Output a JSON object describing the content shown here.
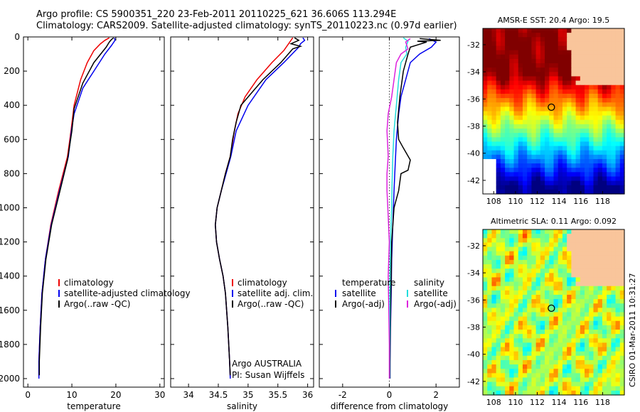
{
  "header": {
    "line1": "Argo profile: CS 5900351_220 23-Feb-2011 20110225_621 36.606S 113.294E",
    "line2": "Climatology: CARS2009. Satellite-adjusted climatology: synTS_20110223.nc (0.97d earlier)"
  },
  "colors": {
    "climatology": "#ee0000",
    "satellite": "#0000ee",
    "argo": "#000000",
    "satellite_salinity": "#22dddd",
    "argo_salinity": "#dd22dd"
  },
  "chart_data": [
    {
      "type": "line",
      "xlabel": "temperature",
      "xlim": [
        -1,
        31
      ],
      "ylim": [
        2050,
        0
      ],
      "xticks": [
        0,
        10,
        20,
        30
      ],
      "yticks": [
        0,
        200,
        400,
        600,
        800,
        1000,
        1200,
        1400,
        1600,
        1800,
        2000
      ],
      "legend": [
        "climatology",
        "satellite-adjusted climatology",
        "Argo(..raw -QC)"
      ],
      "series": [
        {
          "name": "climatology",
          "color": "#ee0000",
          "points": [
            [
              18.5,
              5
            ],
            [
              17.5,
              20
            ],
            [
              16.5,
              40
            ],
            [
              15,
              80
            ],
            [
              13.5,
              150
            ],
            [
              12,
              250
            ],
            [
              10.5,
              400
            ],
            [
              9.8,
              550
            ],
            [
              9,
              700
            ],
            [
              7,
              900
            ],
            [
              5.2,
              1100
            ],
            [
              4,
              1300
            ],
            [
              3.2,
              1500
            ],
            [
              2.8,
              1700
            ],
            [
              2.5,
              1900
            ],
            [
              2.5,
              1990
            ]
          ]
        },
        {
          "name": "satellite-adjusted climatology",
          "color": "#0000ee",
          "points": [
            [
              19.7,
              5
            ],
            [
              19.8,
              20
            ],
            [
              19,
              50
            ],
            [
              17.5,
              100
            ],
            [
              15,
              200
            ],
            [
              12.5,
              300
            ],
            [
              10.5,
              450
            ],
            [
              9.9,
              550
            ],
            [
              9.2,
              700
            ],
            [
              7.2,
              900
            ],
            [
              5.3,
              1100
            ],
            [
              4,
              1300
            ],
            [
              3.2,
              1500
            ],
            [
              2.8,
              1700
            ],
            [
              2.5,
              1900
            ],
            [
              2.5,
              2000
            ]
          ]
        },
        {
          "name": "Argo(..raw -QC)",
          "color": "#000000",
          "points": [
            [
              19.5,
              5
            ],
            [
              19,
              15
            ],
            [
              18.5,
              30
            ],
            [
              17.8,
              60
            ],
            [
              15,
              150
            ],
            [
              12.5,
              270
            ],
            [
              10.5,
              420
            ],
            [
              10,
              550
            ],
            [
              9,
              720
            ],
            [
              7.3,
              900
            ],
            [
              5.4,
              1100
            ],
            [
              4.1,
              1300
            ],
            [
              3.3,
              1500
            ],
            [
              2.9,
              1700
            ],
            [
              2.6,
              1900
            ],
            [
              2.6,
              1980
            ]
          ]
        }
      ]
    },
    {
      "type": "line",
      "xlabel": "salinity",
      "xlim": [
        33.7,
        36.1
      ],
      "ylim": [
        2050,
        0
      ],
      "xticks": [
        34,
        34.5,
        35,
        35.5,
        36
      ],
      "legend": [
        "climatology",
        "satellite adj. clim.",
        "Argo(..raw -QC)"
      ],
      "annotation": [
        "Argo AUSTRALIA",
        "PI: Susan Wijffels"
      ],
      "series": [
        {
          "name": "climatology",
          "color": "#ee0000",
          "points": [
            [
              35.75,
              5
            ],
            [
              35.7,
              30
            ],
            [
              35.6,
              80
            ],
            [
              35.4,
              150
            ],
            [
              35.15,
              250
            ],
            [
              34.95,
              350
            ],
            [
              34.83,
              450
            ],
            [
              34.77,
              550
            ],
            [
              34.7,
              700
            ],
            [
              34.62,
              800
            ],
            [
              34.55,
              900
            ],
            [
              34.48,
              1000
            ],
            [
              34.45,
              1100
            ],
            [
              34.47,
              1200
            ],
            [
              34.52,
              1300
            ],
            [
              34.58,
              1400
            ],
            [
              34.62,
              1500
            ],
            [
              34.66,
              1700
            ],
            [
              34.69,
              1900
            ],
            [
              34.7,
              1990
            ]
          ]
        },
        {
          "name": "satellite adj. clim.",
          "color": "#0000ee",
          "points": [
            [
              35.92,
              5
            ],
            [
              35.95,
              20
            ],
            [
              35.88,
              40
            ],
            [
              35.85,
              60
            ],
            [
              35.6,
              150
            ],
            [
              35.3,
              250
            ],
            [
              35.0,
              400
            ],
            [
              34.8,
              550
            ],
            [
              34.71,
              700
            ],
            [
              34.63,
              800
            ],
            [
              34.55,
              900
            ],
            [
              34.48,
              1000
            ],
            [
              34.45,
              1100
            ],
            [
              34.47,
              1200
            ],
            [
              34.52,
              1300
            ],
            [
              34.58,
              1400
            ],
            [
              34.62,
              1500
            ],
            [
              34.66,
              1700
            ],
            [
              34.69,
              1900
            ],
            [
              34.7,
              2000
            ]
          ]
        },
        {
          "name": "Argo(..raw -QC)",
          "color": "#000000",
          "points": [
            [
              35.78,
              5
            ],
            [
              35.85,
              20
            ],
            [
              35.72,
              40
            ],
            [
              35.88,
              55
            ],
            [
              35.75,
              70
            ],
            [
              35.55,
              150
            ],
            [
              35.25,
              250
            ],
            [
              34.88,
              400
            ],
            [
              34.8,
              500
            ],
            [
              34.74,
              600
            ],
            [
              34.7,
              700
            ],
            [
              34.62,
              800
            ],
            [
              34.55,
              900
            ],
            [
              34.48,
              1000
            ],
            [
              34.45,
              1100
            ],
            [
              34.47,
              1200
            ],
            [
              34.52,
              1300
            ],
            [
              34.58,
              1400
            ],
            [
              34.62,
              1500
            ],
            [
              34.66,
              1700
            ],
            [
              34.69,
              1900
            ],
            [
              34.7,
              1980
            ]
          ]
        }
      ]
    },
    {
      "type": "line",
      "xlabel": "difference from climatology",
      "xlim": [
        -3,
        3
      ],
      "ylim": [
        2050,
        0
      ],
      "xticks": [
        -2,
        0,
        2
      ],
      "legend_groups": [
        {
          "title": "temperature",
          "items": [
            "satellite",
            "Argo(-adj)"
          ]
        },
        {
          "title": "salinity",
          "items": [
            "satellite",
            "Argo(-adj)"
          ]
        }
      ],
      "series": [
        {
          "name": "temperature satellite",
          "color": "#0000ee",
          "points": [
            [
              1.7,
              10
            ],
            [
              2.0,
              30
            ],
            [
              1.8,
              60
            ],
            [
              1.3,
              100
            ],
            [
              0.9,
              150
            ],
            [
              0.7,
              250
            ],
            [
              0.5,
              350
            ],
            [
              0.4,
              450
            ],
            [
              0.3,
              600
            ],
            [
              0.25,
              750
            ],
            [
              0.2,
              900
            ],
            [
              0.15,
              1100
            ],
            [
              0.1,
              1300
            ],
            [
              0.08,
              1500
            ],
            [
              0.05,
              1700
            ],
            [
              0.03,
              1900
            ],
            [
              0.03,
              2000
            ]
          ]
        },
        {
          "name": "temperature Argo(-adj)",
          "color": "#000000",
          "points": [
            [
              1.3,
              10
            ],
            [
              2.2,
              20
            ],
            [
              1.2,
              25
            ],
            [
              1.6,
              30
            ],
            [
              0.9,
              60
            ],
            [
              0.8,
              100
            ],
            [
              0.6,
              200
            ],
            [
              0.45,
              350
            ],
            [
              0.35,
              500
            ],
            [
              0.4,
              600
            ],
            [
              0.6,
              650
            ],
            [
              0.9,
              720
            ],
            [
              0.8,
              780
            ],
            [
              0.5,
              800
            ],
            [
              0.4,
              900
            ],
            [
              0.2,
              1000
            ],
            [
              0.1,
              1200
            ],
            [
              0.08,
              1400
            ],
            [
              0.05,
              1600
            ],
            [
              0.03,
              1800
            ],
            [
              0.02,
              2000
            ]
          ]
        },
        {
          "name": "salinity satellite",
          "color": "#22dddd",
          "points": [
            [
              0.6,
              5
            ],
            [
              0.8,
              25
            ],
            [
              0.7,
              60
            ],
            [
              0.75,
              100
            ],
            [
              0.5,
              150
            ],
            [
              0.4,
              250
            ],
            [
              0.3,
              400
            ],
            [
              0.2,
              550
            ],
            [
              0.15,
              700
            ],
            [
              0.12,
              850
            ],
            [
              0.1,
              1000
            ],
            [
              0.05,
              1200
            ],
            [
              0.03,
              1400
            ],
            [
              0.02,
              1600
            ],
            [
              0.01,
              1800
            ],
            [
              0.01,
              2000
            ]
          ]
        },
        {
          "name": "salinity Argo(-adj)",
          "color": "#dd22dd",
          "points": [
            [
              0.9,
              10
            ],
            [
              0.7,
              30
            ],
            [
              0.8,
              70
            ],
            [
              0.5,
              100
            ],
            [
              0.3,
              150
            ],
            [
              0.2,
              250
            ],
            [
              0.1,
              350
            ],
            [
              -0.05,
              450
            ],
            [
              -0.1,
              550
            ],
            [
              -0.05,
              700
            ],
            [
              -0.1,
              800
            ],
            [
              -0.1,
              900
            ],
            [
              -0.05,
              1050
            ],
            [
              0,
              1200
            ],
            [
              -0.05,
              1400
            ],
            [
              -0.02,
              1600
            ],
            [
              0,
              1800
            ],
            [
              0,
              2000
            ]
          ]
        }
      ]
    }
  ],
  "maps": [
    {
      "title": "AMSR-E SST: 20.4 Argo: 19.5",
      "xticks": [
        "108",
        "110",
        "112",
        "114",
        "116",
        "118"
      ],
      "yticks": [
        "-32",
        "-34",
        "-36",
        "-38",
        "-40",
        "-42"
      ],
      "argo_lon": 113.294,
      "argo_lat": -36.606
    },
    {
      "title": "Altimetric SLA: 0.11 Argo: 0.092",
      "xticks": [
        "108",
        "110",
        "112",
        "114",
        "116",
        "118"
      ],
      "yticks": [
        "-32",
        "-34",
        "-36",
        "-38",
        "-40",
        "-42"
      ],
      "argo_lon": 113.294,
      "argo_lat": -36.606
    }
  ],
  "footer": {
    "stamp": "CSIRO 01-Mar-2011 10:31:27"
  }
}
